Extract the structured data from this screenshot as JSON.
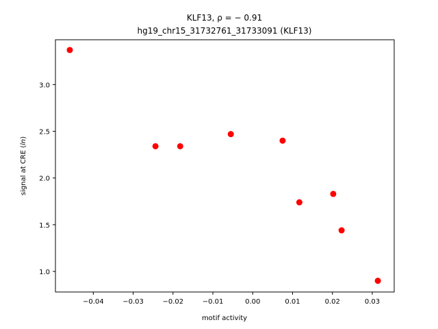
{
  "chart_data": {
    "type": "scatter",
    "title_line1": "KLF13, ρ = − 0.91",
    "title_line2": "hg19_chr15_31732761_31733091 (KLF13)",
    "xlabel": "motif activity",
    "ylabel": "signal at CRE (ln)",
    "xlim": [
      -0.0495,
      0.0355
    ],
    "ylim": [
      0.78,
      3.48
    ],
    "xticks": [
      -0.04,
      -0.03,
      -0.02,
      -0.01,
      0.0,
      0.01,
      0.02,
      0.03
    ],
    "xtick_labels": [
      "−0.04",
      "−0.03",
      "−0.02",
      "−0.01",
      "0.00",
      "0.01",
      "0.02",
      "0.03"
    ],
    "yticks": [
      1.0,
      1.5,
      2.0,
      2.5,
      3.0
    ],
    "ytick_labels": [
      "1.0",
      "1.5",
      "2.0",
      "2.5",
      "3.0"
    ],
    "grid": false,
    "marker_color": "#ff0000",
    "points": [
      {
        "x": -0.0459,
        "y": 3.37
      },
      {
        "x": -0.0244,
        "y": 2.34
      },
      {
        "x": -0.0182,
        "y": 2.34
      },
      {
        "x": -0.0055,
        "y": 2.47
      },
      {
        "x": 0.0075,
        "y": 2.4
      },
      {
        "x": 0.0117,
        "y": 1.74
      },
      {
        "x": 0.0202,
        "y": 1.83
      },
      {
        "x": 0.0223,
        "y": 1.44
      },
      {
        "x": 0.0314,
        "y": 0.9
      }
    ]
  }
}
